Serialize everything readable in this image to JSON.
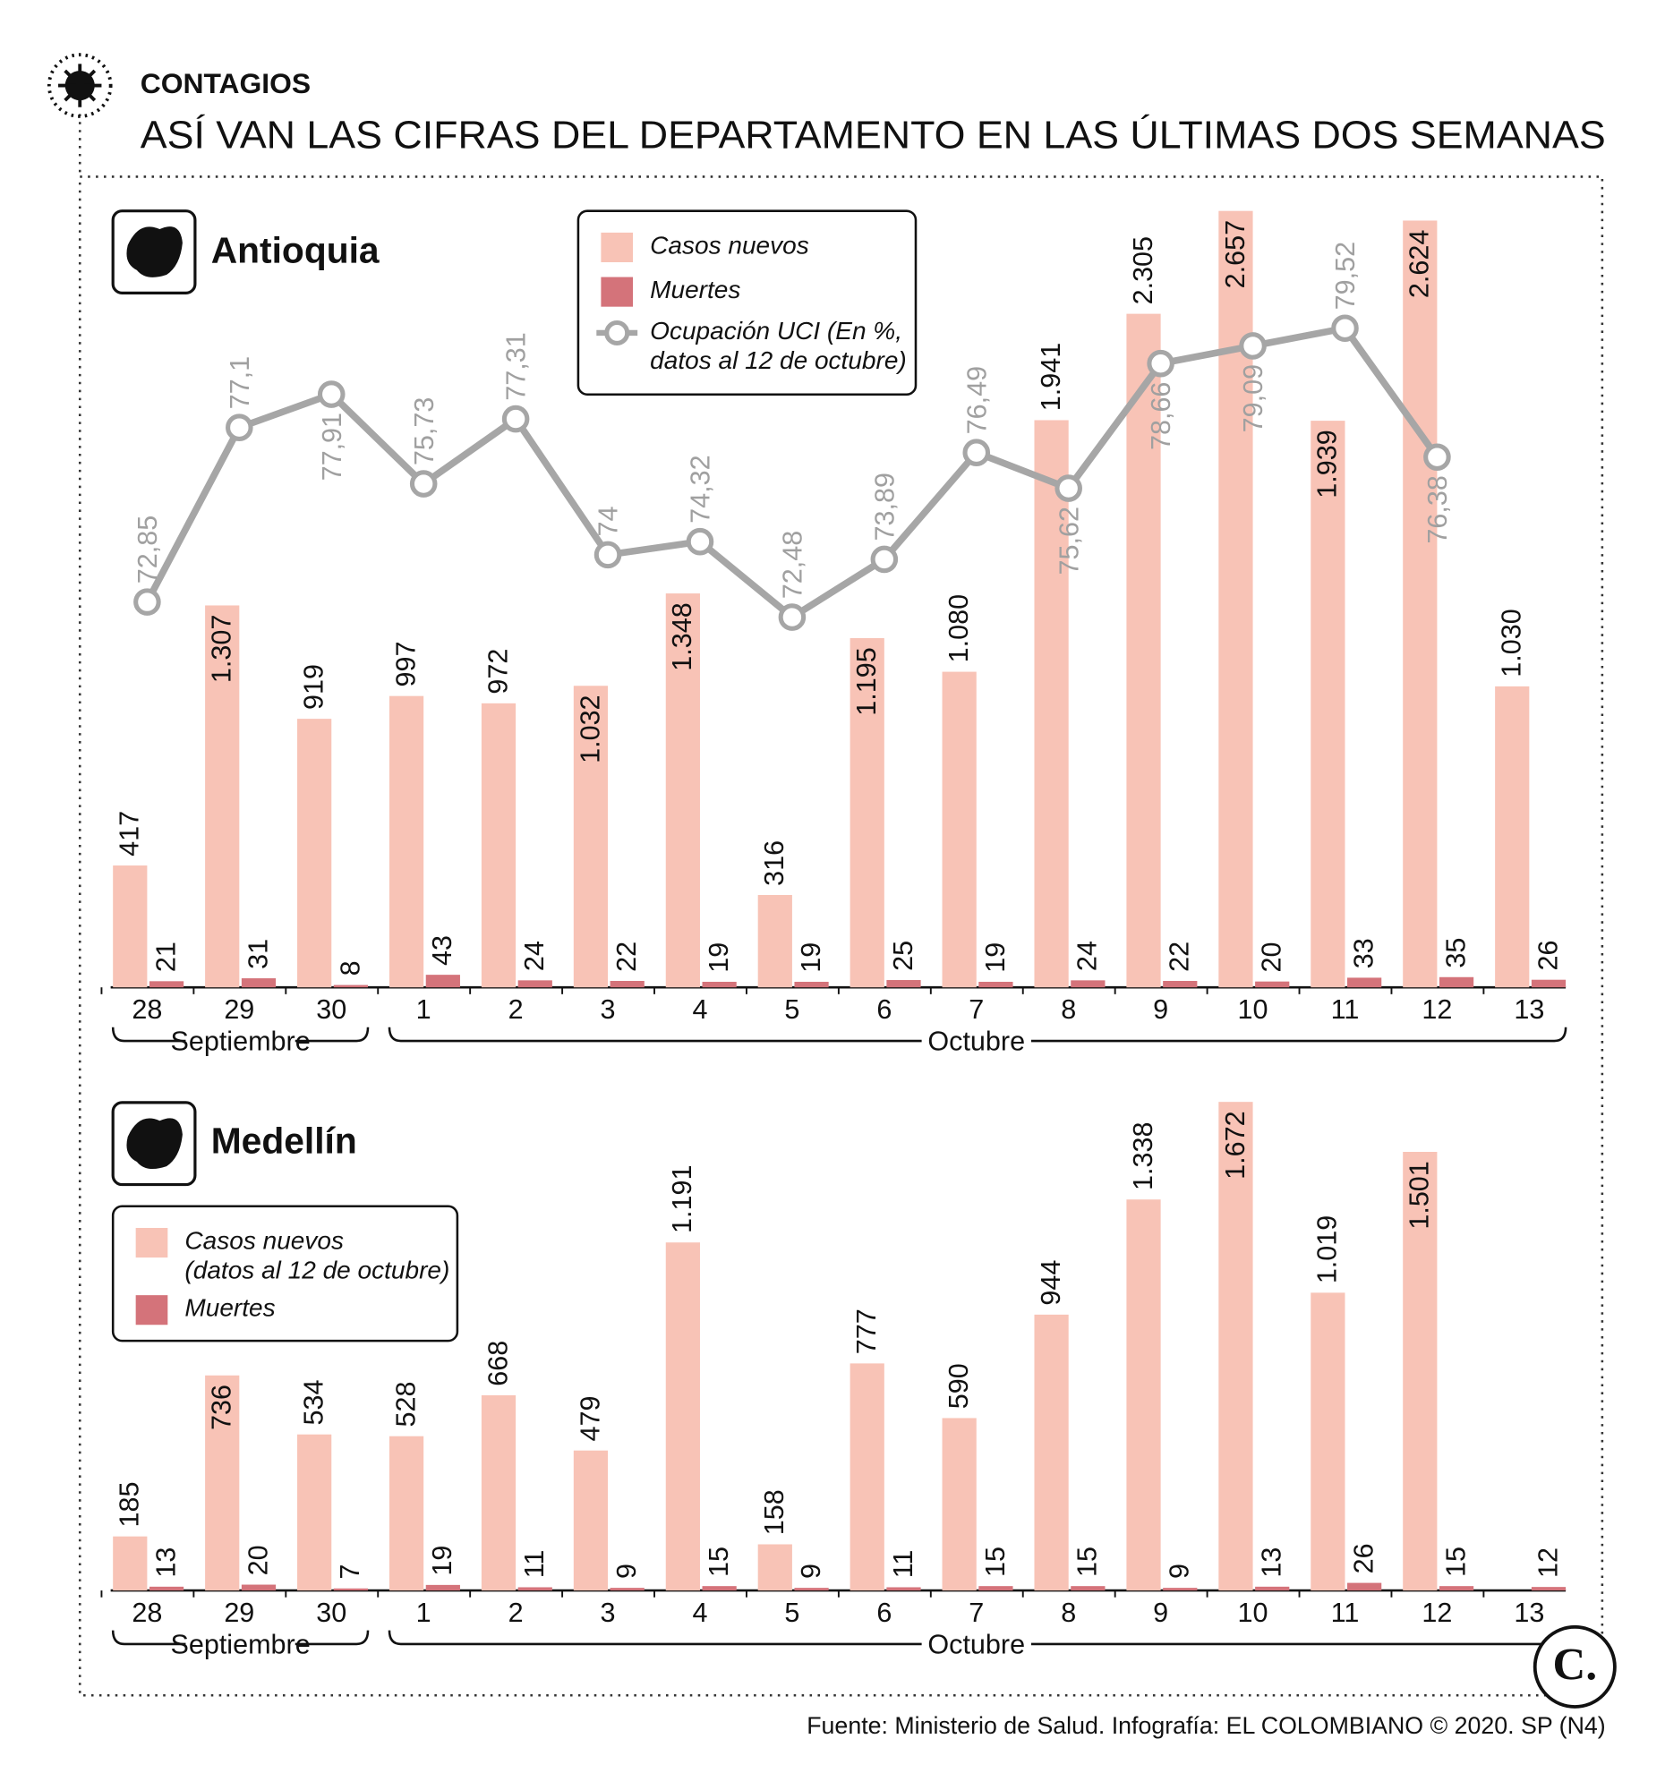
{
  "header": {
    "kicker": "CONTAGIOS",
    "title": "ASÍ VAN LAS CIFRAS DEL DEPARTAMENTO EN LAS ÚLTIMAS DOS SEMANAS"
  },
  "chart_data": [
    {
      "type": "bar",
      "title": "Antioquia",
      "categories": [
        "28",
        "29",
        "30",
        "1",
        "2",
        "3",
        "4",
        "5",
        "6",
        "7",
        "8",
        "9",
        "10",
        "11",
        "12",
        "13"
      ],
      "month_labels": [
        "Septiembre",
        "Octubre"
      ],
      "series": [
        {
          "name": "Casos nuevos",
          "color": "#f8c3b6",
          "values": [
            417,
            1307,
            919,
            997,
            972,
            1032,
            1348,
            316,
            1195,
            1080,
            1941,
            2305,
            2657,
            1939,
            2624,
            1030
          ],
          "value_labels": [
            "417",
            "1.307",
            "919",
            "997",
            "972",
            "1.032",
            "1.348",
            "316",
            "1.195",
            "1.080",
            "1.941",
            "2.305",
            "2.657",
            "1.939",
            "2.624",
            "1.030"
          ]
        },
        {
          "name": "Muertes",
          "color": "#d4737a",
          "values": [
            21,
            31,
            8,
            43,
            24,
            22,
            19,
            19,
            25,
            19,
            24,
            22,
            20,
            33,
            35,
            26
          ]
        },
        {
          "name": "Ocupación UCI (En %,\ndatos al 12 de octubre)",
          "type": "line",
          "color": "#a6a6a6",
          "values": [
            72.85,
            77.1,
            77.91,
            75.73,
            77.31,
            74,
            74.32,
            72.48,
            73.89,
            76.49,
            75.62,
            78.66,
            79.09,
            79.52,
            76.38,
            null
          ],
          "value_labels": [
            "72,85",
            "77,1",
            "77,91",
            "75,73",
            "77,31",
            "74",
            "74,32",
            "72,48",
            "73,89",
            "76,49",
            "75,62",
            "78,66",
            "79,09",
            "79,52",
            "76,38",
            null
          ]
        }
      ]
    },
    {
      "type": "bar",
      "title": "Medellín",
      "categories": [
        "28",
        "29",
        "30",
        "1",
        "2",
        "3",
        "4",
        "5",
        "6",
        "7",
        "8",
        "9",
        "10",
        "11",
        "12",
        "13"
      ],
      "month_labels": [
        "Septiembre",
        "Octubre"
      ],
      "series": [
        {
          "name": "Casos nuevos\n(datos al 12 de octubre)",
          "color": "#f8c3b6",
          "values": [
            185,
            736,
            534,
            528,
            668,
            479,
            1191,
            158,
            777,
            590,
            944,
            1338,
            1672,
            1019,
            1501,
            null
          ],
          "value_labels": [
            "185",
            "736",
            "534",
            "528",
            "668",
            "479",
            "1.191",
            "158",
            "777",
            "590",
            "944",
            "1.338",
            "1.672",
            "1.019",
            "1.501",
            null
          ]
        },
        {
          "name": "Muertes",
          "color": "#d4737a",
          "values": [
            13,
            20,
            7,
            19,
            11,
            9,
            15,
            9,
            11,
            15,
            15,
            9,
            13,
            26,
            15,
            12
          ]
        }
      ]
    }
  ],
  "logo": "C.",
  "source": "Fuente: Ministerio de Salud. Infografía: EL COLOMBIANO © 2020. SP (N4)"
}
